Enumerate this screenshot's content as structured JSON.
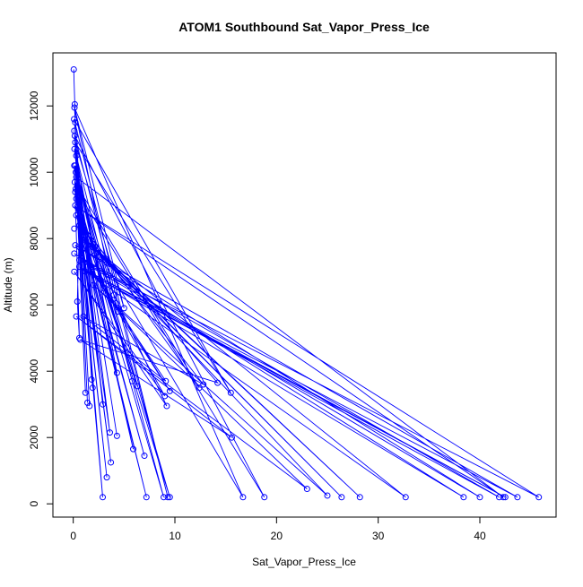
{
  "chart_data": {
    "type": "line",
    "title": "ATOM1 Southbound Sat_Vapor_Press_Ice",
    "xlabel": "Sat_Vapor_Press_Ice",
    "ylabel": "Altitude (m)",
    "x_ticks": [
      0,
      10,
      20,
      30,
      40
    ],
    "y_ticks": [
      0,
      2000,
      4000,
      6000,
      8000,
      10000,
      12000
    ],
    "xlim": [
      -2.0,
      47.5
    ],
    "ylim": [
      -400,
      13600
    ],
    "grid": false,
    "legend": "none",
    "series": [
      {
        "marker": "open-circle",
        "color": "#0000ff",
        "points": [
          [
            0.05,
            13100
          ],
          [
            0.15,
            12050
          ],
          [
            0.12,
            11950
          ],
          [
            0.08,
            11600
          ],
          [
            0.2,
            11500
          ],
          [
            0.1,
            11250
          ],
          [
            0.15,
            11100
          ],
          [
            0.2,
            10900
          ],
          [
            0.12,
            10700
          ],
          [
            0.3,
            10500
          ],
          [
            0.1,
            10200
          ],
          [
            0.2,
            10200
          ],
          [
            0.25,
            10000
          ],
          [
            0.3,
            9850
          ],
          [
            0.15,
            9700
          ],
          [
            0.25,
            9500
          ],
          [
            0.2,
            9400
          ],
          [
            0.3,
            9200
          ],
          [
            0.2,
            9000
          ],
          [
            0.4,
            8950
          ],
          [
            0.3,
            8700
          ],
          [
            0.6,
            8400
          ],
          [
            0.1,
            8300
          ],
          [
            0.8,
            8100
          ],
          [
            1.2,
            7950
          ],
          [
            0.2,
            7800
          ],
          [
            1.9,
            7750
          ],
          [
            0.1,
            7550
          ],
          [
            2.1,
            7500
          ],
          [
            0.6,
            7350
          ],
          [
            0.6,
            7150
          ],
          [
            1.8,
            7150
          ],
          [
            1.2,
            7000
          ],
          [
            0.1,
            7000
          ],
          [
            3.5,
            6900
          ],
          [
            2.7,
            6750
          ],
          [
            2.0,
            6600
          ],
          [
            3.0,
            6500
          ],
          [
            4.0,
            6300
          ],
          [
            0.4,
            6100
          ],
          [
            4.2,
            6050
          ],
          [
            5.0,
            5900
          ],
          [
            4.4,
            5800
          ],
          [
            0.3,
            5650
          ],
          [
            1.0,
            5650
          ],
          [
            0.6,
            5000
          ],
          [
            0.7,
            4950
          ],
          [
            4.3,
            3950
          ],
          [
            5.8,
            3700
          ],
          [
            6.3,
            3550
          ],
          [
            9.1,
            3700
          ],
          [
            12.4,
            3500
          ],
          [
            12.8,
            3600
          ],
          [
            14.2,
            3650
          ],
          [
            15.5,
            3350
          ],
          [
            1.2,
            3350
          ],
          [
            1.8,
            3750
          ],
          [
            1.9,
            3500
          ],
          [
            9.5,
            3400
          ],
          [
            9.0,
            3250
          ],
          [
            2.9,
            3000
          ],
          [
            1.4,
            3050
          ],
          [
            1.6,
            2950
          ],
          [
            9.2,
            2950
          ],
          [
            3.6,
            2150
          ],
          [
            4.3,
            2050
          ],
          [
            15.6,
            2000
          ],
          [
            5.9,
            1650
          ],
          [
            7.0,
            1450
          ],
          [
            3.7,
            1250
          ],
          [
            3.3,
            800
          ],
          [
            23.0,
            450
          ],
          [
            2.9,
            200
          ],
          [
            7.2,
            200
          ],
          [
            8.9,
            200
          ],
          [
            9.3,
            200
          ],
          [
            9.5,
            200
          ],
          [
            16.7,
            200
          ],
          [
            18.8,
            200
          ],
          [
            25.0,
            250
          ],
          [
            26.4,
            200
          ],
          [
            28.2,
            200
          ],
          [
            32.7,
            200
          ],
          [
            38.4,
            200
          ],
          [
            40.0,
            200
          ],
          [
            41.9,
            200
          ],
          [
            42.3,
            200
          ],
          [
            42.5,
            200
          ],
          [
            43.7,
            200
          ],
          [
            45.8,
            200
          ]
        ],
        "path": [
          [
            0.05,
            13100
          ],
          [
            0.15,
            12050
          ],
          [
            0.2,
            11500
          ],
          [
            0.1,
            11250
          ],
          [
            0.3,
            10500
          ],
          [
            2.1,
            7500
          ],
          [
            0.2,
            10200
          ],
          [
            0.6,
            8400
          ],
          [
            0.4,
            6100
          ],
          [
            0.6,
            5000
          ],
          [
            0.1,
            10200
          ],
          [
            4.0,
            6300
          ],
          [
            0.2,
            9000
          ],
          [
            6.3,
            3550
          ],
          [
            0.3,
            9200
          ],
          [
            8.9,
            200
          ],
          [
            0.25,
            10000
          ],
          [
            9.5,
            200
          ],
          [
            0.2,
            9400
          ],
          [
            3.6,
            2150
          ],
          [
            0.12,
            10700
          ],
          [
            1.8,
            7150
          ],
          [
            0.15,
            9700
          ],
          [
            12.4,
            3500
          ],
          [
            0.3,
            8700
          ],
          [
            16.7,
            200
          ],
          [
            0.12,
            11950
          ],
          [
            5.0,
            5900
          ],
          [
            0.2,
            10900
          ],
          [
            15.5,
            3350
          ],
          [
            0.08,
            11600
          ],
          [
            9.3,
            200
          ],
          [
            0.15,
            11100
          ],
          [
            18.8,
            200
          ],
          [
            0.25,
            9500
          ],
          [
            3.0,
            6500
          ],
          [
            0.2,
            10200
          ],
          [
            1.2,
            3350
          ],
          [
            0.3,
            9850
          ],
          [
            42.3,
            200
          ],
          [
            0.4,
            8950
          ],
          [
            45.8,
            200
          ],
          [
            0.6,
            7350
          ],
          [
            40.0,
            200
          ],
          [
            0.2,
            7800
          ],
          [
            43.7,
            200
          ],
          [
            0.6,
            7150
          ],
          [
            42.5,
            200
          ],
          [
            1.2,
            7000
          ],
          [
            41.9,
            200
          ],
          [
            0.1,
            7550
          ],
          [
            38.4,
            200
          ],
          [
            0.6,
            7150
          ],
          [
            32.7,
            200
          ],
          [
            1.9,
            7750
          ],
          [
            28.2,
            200
          ],
          [
            0.8,
            8100
          ],
          [
            26.4,
            200
          ],
          [
            1.2,
            7950
          ],
          [
            25.0,
            250
          ],
          [
            2.0,
            6600
          ],
          [
            23.0,
            450
          ],
          [
            0.3,
            5650
          ],
          [
            15.6,
            2000
          ],
          [
            0.7,
            4950
          ],
          [
            14.2,
            3650
          ],
          [
            0.6,
            8400
          ],
          [
            12.8,
            3600
          ],
          [
            1.0,
            5650
          ],
          [
            9.1,
            3700
          ],
          [
            0.2,
            7800
          ],
          [
            9.5,
            3400
          ],
          [
            2.7,
            6750
          ],
          [
            9.0,
            3250
          ],
          [
            0.1,
            7000
          ],
          [
            9.2,
            2950
          ],
          [
            0.3,
            8700
          ],
          [
            7.2,
            200
          ],
          [
            0.2,
            9000
          ],
          [
            7.0,
            1450
          ],
          [
            0.4,
            8950
          ],
          [
            5.9,
            1650
          ],
          [
            0.25,
            9500
          ],
          [
            3.7,
            1250
          ],
          [
            0.2,
            9400
          ],
          [
            3.3,
            800
          ],
          [
            0.15,
            9700
          ],
          [
            2.9,
            200
          ],
          [
            0.3,
            9850
          ],
          [
            4.3,
            2050
          ],
          [
            0.1,
            10200
          ],
          [
            5.8,
            3700
          ],
          [
            0.3,
            10500
          ],
          [
            4.3,
            3950
          ],
          [
            0.12,
            10700
          ],
          [
            2.9,
            3000
          ],
          [
            0.2,
            10900
          ],
          [
            1.4,
            3050
          ],
          [
            0.15,
            11100
          ],
          [
            1.6,
            2950
          ],
          [
            0.1,
            11250
          ],
          [
            1.9,
            3500
          ],
          [
            0.2,
            11500
          ],
          [
            1.8,
            3750
          ],
          [
            0.12,
            11950
          ],
          [
            3.5,
            6900
          ],
          [
            4.4,
            5800
          ],
          [
            4.2,
            6050
          ]
        ]
      }
    ]
  }
}
